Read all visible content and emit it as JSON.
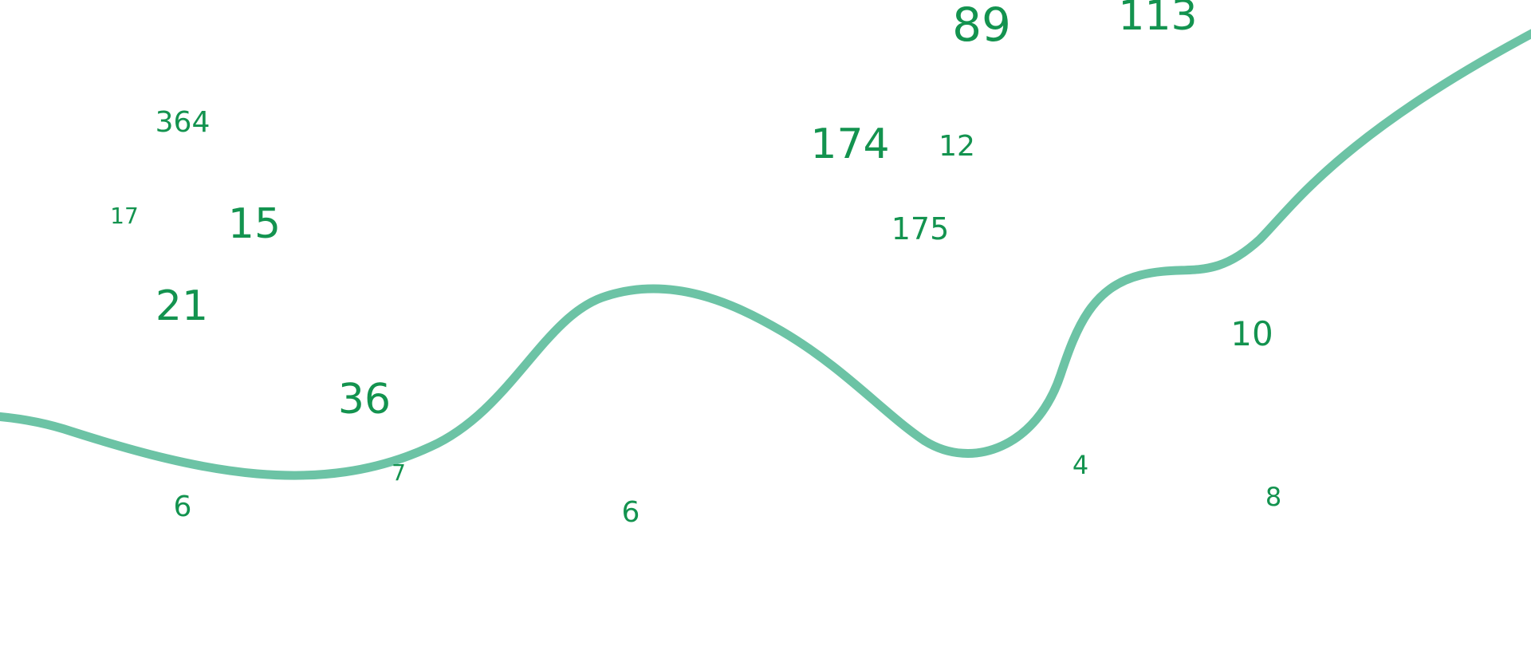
{
  "colors": {
    "number": "#13934f",
    "curve": "#6cc3a5",
    "background": "#ffffff"
  },
  "numbers": [
    "89",
    "113",
    "174",
    "12",
    "364",
    "17",
    "15",
    "175",
    "21",
    "10",
    "36",
    "4",
    "7",
    "6",
    "6",
    "8"
  ]
}
